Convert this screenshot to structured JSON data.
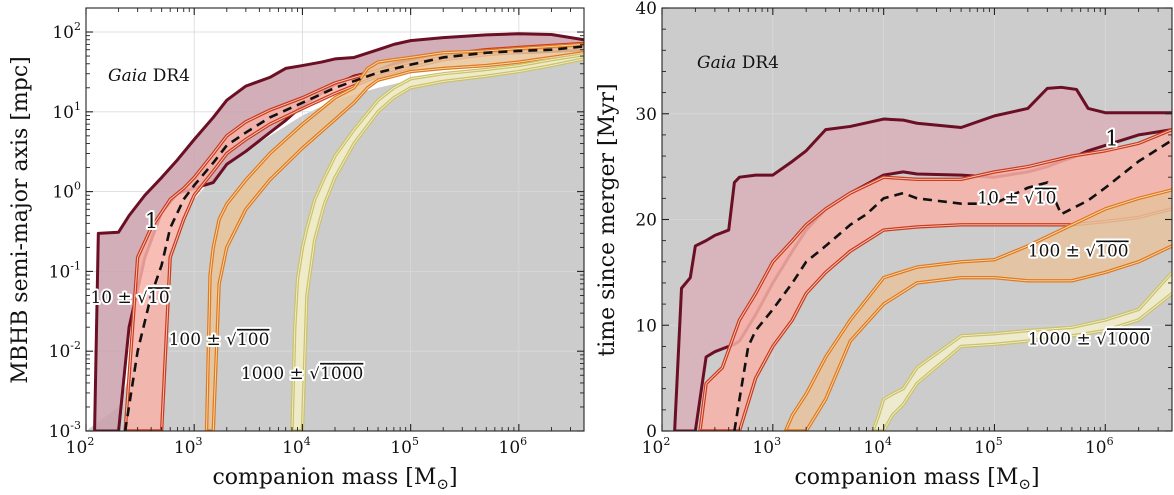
{
  "chart_data": [
    {
      "type": "area",
      "panel": "left",
      "xscale": "log",
      "yscale": "log",
      "xlim": [
        100,
        4000000
      ],
      "ylim": [
        0.001,
        200
      ],
      "xlabel_main": "companion mass [M",
      "xlabel_sub": "⊙",
      "xlabel_end": "]",
      "ylabel": "MBHB semi-major axis [mpc]",
      "annotation_italic": "Gaia",
      "annotation_rest": " DR4",
      "x_ticks": [
        {
          "base": "10",
          "exp": "2",
          "value": 100
        },
        {
          "base": "10",
          "exp": "3",
          "value": 1000
        },
        {
          "base": "10",
          "exp": "4",
          "value": 10000
        },
        {
          "base": "10",
          "exp": "5",
          "value": 100000
        },
        {
          "base": "10",
          "exp": "6",
          "value": 1000000
        }
      ],
      "y_ticks": [
        {
          "base": "10",
          "exp": "-3",
          "value": 0.001
        },
        {
          "base": "10",
          "exp": "-2",
          "value": 0.01
        },
        {
          "base": "10",
          "exp": "-1",
          "value": 0.1
        },
        {
          "base": "10",
          "exp": "0",
          "value": 1
        },
        {
          "base": "10",
          "exp": "1",
          "value": 10
        },
        {
          "base": "10",
          "exp": "2",
          "value": 100
        }
      ],
      "background_region": {
        "color": "#cccccc",
        "x": [
          100,
          200,
          300,
          500,
          700,
          1000,
          1500,
          2000,
          3000,
          5000,
          10000,
          20000,
          50000,
          100000,
          200000,
          500000,
          1000000,
          2000000,
          4000000
        ],
        "y": [
          0.001,
          0.002,
          0.01,
          0.1,
          0.3,
          0.8,
          1.5,
          2.2,
          3.2,
          5,
          9,
          14,
          20,
          25,
          28,
          33,
          38,
          45,
          55
        ]
      },
      "series": [
        {
          "label": "1",
          "fill": "#c9a0ac",
          "edge": "#6b0f24",
          "x": [
            120,
            130,
            200,
            250,
            350,
            500,
            700,
            1000,
            1500,
            2000,
            3000,
            5000,
            7000,
            10000,
            15000,
            20000,
            30000,
            50000,
            70000,
            100000,
            200000,
            500000,
            1000000,
            2000000,
            4000000
          ],
          "upper": [
            0.001,
            0.3,
            0.31,
            0.5,
            0.9,
            1.5,
            2.5,
            4.5,
            8.5,
            14,
            21,
            27,
            35,
            38,
            42,
            46,
            48,
            60,
            70,
            78,
            85,
            92,
            95,
            93,
            80
          ],
          "lower": [
            0.001,
            0.001,
            0.001,
            0.02,
            0.15,
            0.55,
            0.95,
            1.1,
            1.3,
            2.2,
            3.2,
            5.5,
            7.8,
            12,
            17,
            22,
            28,
            33,
            40,
            46,
            50,
            53,
            55,
            57,
            60
          ]
        },
        {
          "label": "10 ± √10",
          "fill": "#f7b2a8",
          "edge": "#cc3b1f",
          "x": [
            230,
            300,
            400,
            500,
            600,
            800,
            1000,
            1500,
            2000,
            3000,
            5000,
            10000,
            20000,
            50000,
            100000,
            200000,
            500000,
            1000000,
            2000000,
            4000000
          ],
          "upper": [
            0.001,
            0.15,
            0.35,
            0.55,
            0.8,
            1.1,
            1.5,
            3.0,
            5.0,
            7.5,
            10.5,
            15,
            23,
            33,
            42,
            52,
            60,
            64,
            68,
            72
          ],
          "lower": [
            0.001,
            0.001,
            0.001,
            0.001,
            0.15,
            0.45,
            0.9,
            1.8,
            3.0,
            4.5,
            7,
            11,
            17,
            28,
            36,
            45,
            52,
            56,
            60,
            64
          ],
          "median": [
            0.001,
            0.01,
            0.05,
            0.12,
            0.35,
            0.8,
            1.2,
            2.3,
            3.8,
            5.5,
            8.5,
            13,
            20,
            31,
            39,
            48,
            55,
            58,
            60,
            66
          ]
        },
        {
          "label": "100 ± √100",
          "fill": "#e9c49b",
          "edge": "#e07a1a",
          "x": [
            1300,
            1400,
            1500,
            1700,
            2000,
            3000,
            5000,
            10000,
            20000,
            30000,
            40000,
            50000,
            70000,
            100000,
            200000,
            500000,
            1000000,
            2000000,
            4000000
          ],
          "upper": [
            0.001,
            0.09,
            0.2,
            0.45,
            0.7,
            1.4,
            3.0,
            7,
            15,
            20,
            35,
            42,
            45,
            48,
            55,
            58,
            62,
            66,
            70
          ],
          "lower": [
            0.001,
            0.001,
            0.001,
            0.07,
            0.2,
            0.6,
            1.4,
            3.5,
            8,
            13,
            20,
            25,
            28,
            32,
            35,
            38,
            42,
            48,
            55
          ]
        },
        {
          "label": "1000 ± √1000",
          "fill": "#f4f0c8",
          "edge": "#c9c36a",
          "x": [
            8000,
            8500,
            9000,
            10000,
            11000,
            13000,
            16000,
            20000,
            30000,
            50000,
            70000,
            100000,
            200000,
            500000,
            1000000,
            2000000,
            4000000
          ],
          "upper": [
            0.001,
            0.02,
            0.08,
            0.2,
            0.35,
            0.8,
            1.5,
            2.8,
            6,
            14,
            20,
            26,
            30,
            34,
            38,
            45,
            52
          ],
          "lower": [
            0.001,
            0.001,
            0.001,
            0.001,
            0.05,
            0.25,
            0.7,
            1.5,
            4,
            10,
            15,
            20,
            24,
            28,
            32,
            38,
            46
          ]
        }
      ],
      "labels": [
        {
          "text": "1",
          "x": 350,
          "y": 0.35
        },
        {
          "text": "10 ± ",
          "root": "10",
          "x": 110,
          "y": 0.04
        },
        {
          "text": "100 ± ",
          "root": "100",
          "x": 580,
          "y": 0.012
        },
        {
          "text": "1000 ± ",
          "root": "1000",
          "x": 2700,
          "y": 0.0045
        }
      ]
    },
    {
      "type": "area",
      "panel": "right",
      "xscale": "log",
      "yscale": "linear",
      "xlim": [
        100,
        4000000
      ],
      "ylim": [
        0,
        40
      ],
      "xlabel_main": "companion mass [M",
      "xlabel_sub": "⊙",
      "xlabel_end": "]",
      "ylabel": "time since merger [Myr]",
      "annotation_italic": "Gaia",
      "annotation_rest": " DR4",
      "x_ticks": [
        {
          "base": "10",
          "exp": "2",
          "value": 100
        },
        {
          "base": "10",
          "exp": "3",
          "value": 1000
        },
        {
          "base": "10",
          "exp": "4",
          "value": 10000
        },
        {
          "base": "10",
          "exp": "5",
          "value": 100000
        },
        {
          "base": "10",
          "exp": "6",
          "value": 1000000
        }
      ],
      "y_ticks": [
        {
          "label": "0",
          "value": 0
        },
        {
          "label": "10",
          "value": 10
        },
        {
          "label": "20",
          "value": 20
        },
        {
          "label": "30",
          "value": 30
        },
        {
          "label": "40",
          "value": 40
        }
      ],
      "background_region": {
        "color": "#cccccc",
        "x": [
          100,
          4000000
        ],
        "y": [
          40,
          40
        ]
      },
      "series": [
        {
          "label": "1",
          "fill": "#d9afba",
          "edge": "#6b0f24",
          "x": [
            130,
            150,
            180,
            200,
            250,
            300,
            400,
            450,
            500,
            700,
            1000,
            1500,
            2000,
            3000,
            5000,
            10000,
            15000,
            20000,
            50000,
            100000,
            200000,
            300000,
            400000,
            550000,
            700000,
            1000000,
            2000000,
            4000000
          ],
          "upper": [
            0,
            13.5,
            14.5,
            17.5,
            18,
            18.5,
            19,
            23.5,
            24,
            24.2,
            24.2,
            25.5,
            26.5,
            28.5,
            28.8,
            29.5,
            29.4,
            29.1,
            28.7,
            29.8,
            30.5,
            32.4,
            32.5,
            32.3,
            30.5,
            30.1,
            30.1,
            30.1
          ],
          "lower": [
            0,
            0,
            0,
            0,
            7,
            7.5,
            8,
            8.2,
            8.5,
            11,
            14,
            17,
            19,
            21,
            22.5,
            24.2,
            24.5,
            24.3,
            24.2,
            24,
            24.5,
            25,
            25.5,
            26,
            26.5,
            27,
            28,
            28.5
          ]
        },
        {
          "label": "10 ± √10",
          "fill": "#f7b2a8",
          "edge": "#cc3b1f",
          "x": [
            220,
            250,
            350,
            500,
            700,
            1000,
            1500,
            2000,
            3000,
            5000,
            10000,
            20000,
            50000,
            100000,
            200000,
            500000,
            1000000,
            2000000,
            4000000
          ],
          "upper": [
            0,
            4.5,
            6,
            10.5,
            13,
            16,
            18,
            19.5,
            21,
            22.5,
            24,
            23.8,
            23.8,
            24.5,
            25,
            26,
            26.5,
            27.2,
            28.5
          ],
          "lower": [
            0,
            0,
            0,
            0,
            5,
            8,
            10.5,
            13,
            15,
            17,
            19,
            19.3,
            19.5,
            19.5,
            19.5,
            19.5,
            19.8,
            20.2,
            21
          ]
        },
        {
          "label": "100 ± √100",
          "fill": "#e6c29c",
          "edge": "#e07a1a",
          "x": [
            1300,
            1500,
            2000,
            3000,
            5000,
            10000,
            20000,
            50000,
            100000,
            200000,
            500000,
            1000000,
            2000000,
            4000000
          ],
          "upper": [
            0,
            1.5,
            3.5,
            7,
            10.5,
            14.5,
            15.5,
            16,
            16.2,
            17.5,
            19.5,
            21,
            22,
            22.8
          ],
          "lower": [
            0,
            0,
            0,
            3,
            8.5,
            12,
            14,
            14.5,
            14.5,
            14.2,
            14.2,
            15,
            16,
            17.5
          ]
        },
        {
          "label": "1000 ± √1000",
          "fill": "#f2efcc",
          "edge": "#c9c36a",
          "x": [
            8000,
            9000,
            10000,
            12000,
            15000,
            20000,
            50000,
            100000,
            200000,
            500000,
            1000000,
            2000000,
            4000000
          ],
          "upper": [
            0,
            1.5,
            3,
            3.5,
            4,
            6,
            9,
            9.2,
            9.5,
            9.8,
            10.5,
            11.5,
            15
          ],
          "lower": [
            0,
            0,
            0,
            1.5,
            2.5,
            4.5,
            8,
            8.2,
            8.5,
            9,
            9.5,
            10.5,
            13
          ]
        }
      ],
      "median_line": {
        "x": [
          450,
          500,
          600,
          700,
          1000,
          1500,
          2000,
          3000,
          5000,
          7000,
          10000,
          15000,
          20000,
          50000,
          100000,
          200000,
          300000,
          400000,
          700000,
          1000000,
          2000000,
          4000000
        ],
        "y": [
          0,
          3,
          8,
          9.5,
          11.5,
          14,
          16,
          17.5,
          19.5,
          20.5,
          22,
          22.5,
          22,
          21.5,
          21.5,
          23,
          23.5,
          20.5,
          21.8,
          23,
          25.5,
          27.5
        ]
      },
      "labels": [
        {
          "text": "1",
          "x": 1000000,
          "y": 27
        },
        {
          "text": "10 ± ",
          "root": "10",
          "x": 70000,
          "y": 21.5
        },
        {
          "text": "100 ± ",
          "root": "100",
          "x": 200000,
          "y": 16.5
        },
        {
          "text": "1000 ± ",
          "root": "1000",
          "x": 200000,
          "y": 8.2
        }
      ]
    }
  ]
}
